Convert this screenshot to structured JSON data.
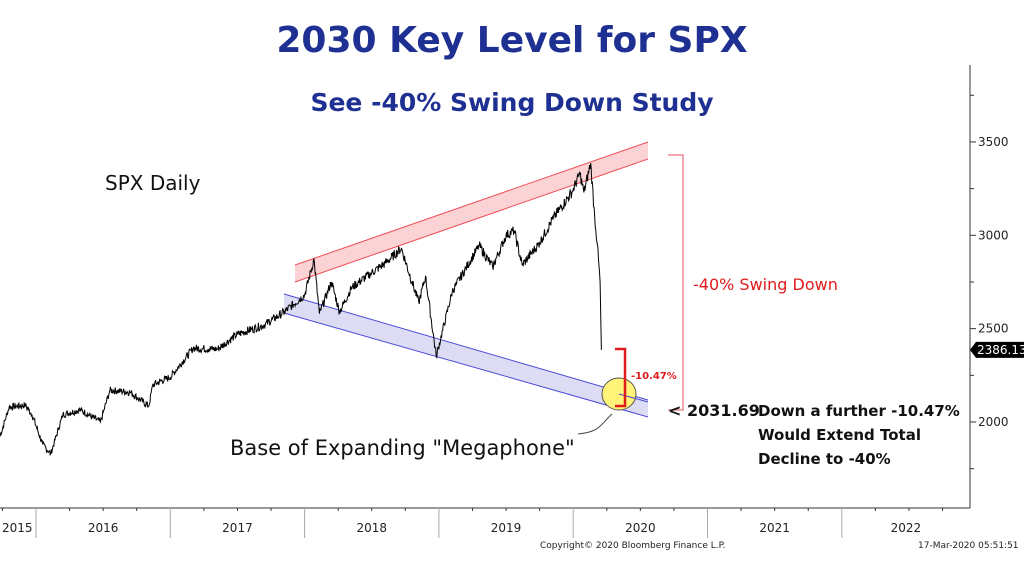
{
  "chart_data": {
    "type": "line",
    "title": "2030 Key Level for SPX",
    "subtitle": "See -40% Swing Down Study",
    "series_label": "SPX Daily",
    "xlabel": "",
    "ylabel": "",
    "x_tick_labels": [
      "2015",
      "2016",
      "2017",
      "2018",
      "2019",
      "2020",
      "2021",
      "2022"
    ],
    "y_ticks": [
      2000,
      2500,
      3000,
      3500
    ],
    "ylim": [
      1560,
      3870
    ],
    "xlim": [
      2015.73,
      2022.95
    ],
    "last_value_label": "2386.13",
    "series": [
      {
        "name": "SPX",
        "points": [
          [
            2015.73,
            1920
          ],
          [
            2015.8,
            2080
          ],
          [
            2015.92,
            2090
          ],
          [
            2015.97,
            2040
          ],
          [
            2016.05,
            1880
          ],
          [
            2016.11,
            1830
          ],
          [
            2016.2,
            2040
          ],
          [
            2016.33,
            2065
          ],
          [
            2016.48,
            2000
          ],
          [
            2016.55,
            2170
          ],
          [
            2016.7,
            2160
          ],
          [
            2016.84,
            2085
          ],
          [
            2016.87,
            2200
          ],
          [
            2017.0,
            2240
          ],
          [
            2017.17,
            2395
          ],
          [
            2017.35,
            2390
          ],
          [
            2017.5,
            2470
          ],
          [
            2017.7,
            2520
          ],
          [
            2017.85,
            2590
          ],
          [
            2018.0,
            2680
          ],
          [
            2018.07,
            2872
          ],
          [
            2018.11,
            2580
          ],
          [
            2018.2,
            2750
          ],
          [
            2018.26,
            2590
          ],
          [
            2018.35,
            2720
          ],
          [
            2018.5,
            2800
          ],
          [
            2018.6,
            2850
          ],
          [
            2018.72,
            2930
          ],
          [
            2018.8,
            2750
          ],
          [
            2018.85,
            2640
          ],
          [
            2018.9,
            2780
          ],
          [
            2018.98,
            2351
          ],
          [
            2019.1,
            2700
          ],
          [
            2019.3,
            2945
          ],
          [
            2019.4,
            2830
          ],
          [
            2019.5,
            3000
          ],
          [
            2019.56,
            3025
          ],
          [
            2019.62,
            2840
          ],
          [
            2019.75,
            2960
          ],
          [
            2019.85,
            3090
          ],
          [
            2019.99,
            3230
          ],
          [
            2020.05,
            3330
          ],
          [
            2020.08,
            3230
          ],
          [
            2020.13,
            3386
          ],
          [
            2020.16,
            3100
          ],
          [
            2020.18,
            2950
          ],
          [
            2020.2,
            2750
          ],
          [
            2020.21,
            2386.13
          ]
        ]
      }
    ],
    "annotations": {
      "swing_label": "-40% Swing Down",
      "further_pct": "-10.47%",
      "target_label": "< 2031.69",
      "note_lines": [
        "Down a further -10.47%",
        "Would Extend Total",
        "Decline to -40%"
      ],
      "base_label": "Base of Expanding \"Megaphone\"",
      "upper_channel": [
        [
          2017.93,
          2810
        ],
        [
          2020.58,
          3470
        ]
      ],
      "lower_channel": [
        [
          2017.85,
          2690
        ],
        [
          2020.58,
          2100
        ]
      ]
    },
    "colors": {
      "title": "#1f3093",
      "upper_band": "#f4a6aa",
      "lower_band": "#c8c8f0",
      "red": "#e01b1b",
      "highlight": "#fff37a"
    }
  },
  "footer": {
    "copyright": "Copyright© 2020 Bloomberg Finance L.P.",
    "timestamp": "17-Mar-2020 05:51:51"
  }
}
